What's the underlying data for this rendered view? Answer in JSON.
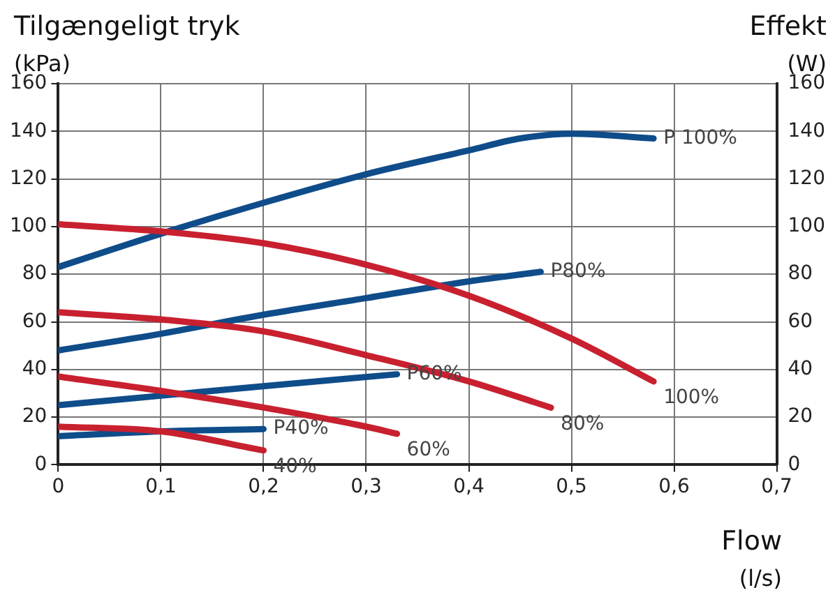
{
  "chart_data": {
    "type": "line",
    "xlabel": "Flow (l/s)",
    "ylabel": "Tilgængeligt tryk (kPa)",
    "y2label": "Effekt (W)",
    "xlim": [
      0,
      0.7
    ],
    "xticks": [
      0,
      {
        "value": 0.1,
        "label": "0,1"
      },
      {
        "value": 0.2,
        "label": "0,2"
      },
      {
        "value": 0.3,
        "label": "0,3"
      },
      {
        "value": 0.4,
        "label": "0,4"
      },
      {
        "value": 0.5,
        "label": "0,5"
      },
      {
        "value": 0.6,
        "label": "0,6"
      },
      {
        "value": 0.7,
        "label": "0,7"
      }
    ],
    "ylim": [
      0,
      160
    ],
    "yticks": [
      0,
      20,
      40,
      60,
      80,
      100,
      120,
      140,
      160
    ],
    "y2lim": [
      0,
      160
    ],
    "y2ticks": [
      0,
      20,
      40,
      60,
      80,
      100,
      120,
      140,
      160
    ],
    "grid": true,
    "legend": false,
    "marker": "none",
    "line_style": "solid",
    "series": [
      {
        "name": "100%",
        "color": "#c8202f",
        "x": [
          0,
          0.1,
          0.2,
          0.3,
          0.4,
          0.5,
          0.58
        ],
        "values": [
          101,
          98,
          93,
          84,
          71,
          53,
          35
        ]
      },
      {
        "name": "80%",
        "color": "#c8202f",
        "x": [
          0,
          0.1,
          0.2,
          0.3,
          0.4,
          0.48
        ],
        "values": [
          64,
          61,
          56,
          46,
          35,
          24
        ]
      },
      {
        "name": "60%",
        "color": "#c8202f",
        "x": [
          0,
          0.1,
          0.2,
          0.3,
          0.33
        ],
        "values": [
          37,
          31,
          24,
          16,
          13
        ]
      },
      {
        "name": "40%",
        "color": "#c8202f",
        "x": [
          0,
          0.1,
          0.2
        ],
        "values": [
          16,
          14,
          6
        ]
      },
      {
        "name": "P 100%",
        "color": "#0f4c8a",
        "axis": "y2",
        "x": [
          0,
          0.1,
          0.2,
          0.3,
          0.4,
          0.45,
          0.5,
          0.58
        ],
        "values": [
          83,
          97,
          110,
          122,
          132,
          137,
          139,
          137
        ]
      },
      {
        "name": "P80%",
        "color": "#0f4c8a",
        "axis": "y2",
        "x": [
          0,
          0.1,
          0.2,
          0.3,
          0.4,
          0.47
        ],
        "values": [
          48,
          55,
          63,
          70,
          77,
          81
        ]
      },
      {
        "name": "P60%",
        "color": "#0f4c8a",
        "axis": "y2",
        "x": [
          0,
          0.1,
          0.2,
          0.33
        ],
        "values": [
          25,
          29,
          33,
          38
        ]
      },
      {
        "name": "P40%",
        "color": "#0f4c8a",
        "axis": "y2",
        "x": [
          0,
          0.1,
          0.2
        ],
        "values": [
          12,
          14,
          15
        ]
      }
    ]
  }
}
